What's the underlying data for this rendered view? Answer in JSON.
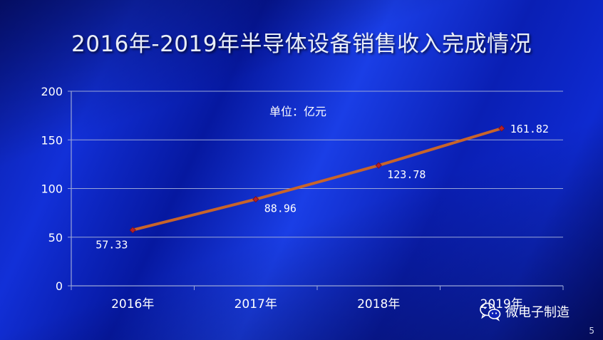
{
  "slide": {
    "title": "2016年-2019年半导体设备销售收入完成情况",
    "page_number": "5",
    "watermark": "微电子制造"
  },
  "chart_data": {
    "type": "line",
    "title": "2016年-2019年半导体设备销售收入完成情况",
    "annotation": "单位：亿元",
    "categories": [
      "2016年",
      "2017年",
      "2018年",
      "2019年"
    ],
    "series": [
      {
        "values": [
          57.33,
          88.96,
          123.78,
          161.82
        ],
        "labels": [
          "57.33",
          "88.96",
          "123.78",
          "161.82"
        ]
      }
    ],
    "y_ticks": [
      "0",
      "50",
      "100",
      "150",
      "200"
    ],
    "ylim": [
      0,
      200
    ],
    "grid": true,
    "colors": {
      "line": "#c8642a",
      "marker": "#b5202a",
      "grid": "#9aa6d8",
      "text": "#ffffff"
    }
  }
}
